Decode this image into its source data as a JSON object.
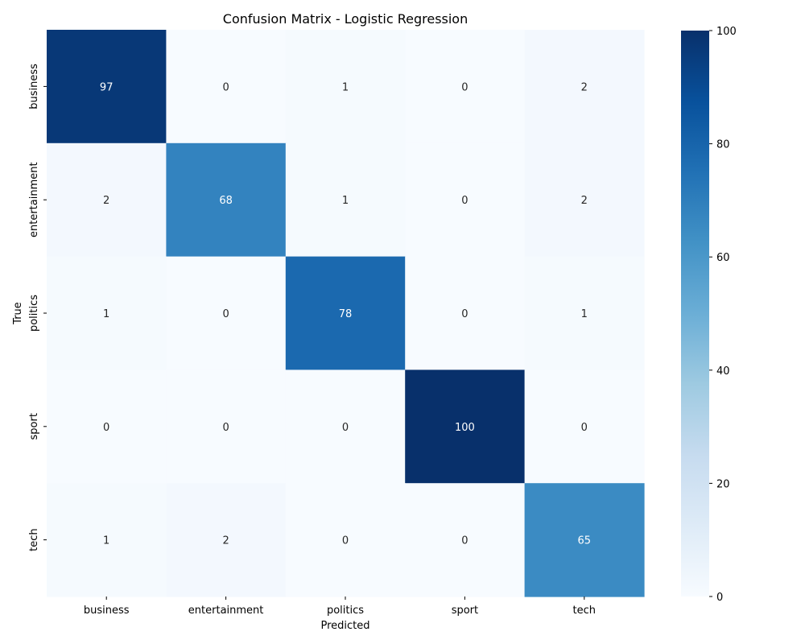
{
  "chart_data": {
    "type": "heatmap",
    "title": "Confusion Matrix - Logistic Regression",
    "xlabel": "Predicted",
    "ylabel": "True",
    "x_categories": [
      "business",
      "entertainment",
      "politics",
      "sport",
      "tech"
    ],
    "y_categories": [
      "business",
      "entertainment",
      "politics",
      "sport",
      "tech"
    ],
    "values": [
      [
        97,
        0,
        1,
        0,
        2
      ],
      [
        2,
        68,
        1,
        0,
        2
      ],
      [
        1,
        0,
        78,
        0,
        1
      ],
      [
        0,
        0,
        0,
        100,
        0
      ],
      [
        1,
        2,
        0,
        0,
        65
      ]
    ],
    "colormap": "Blues",
    "colorbar": {
      "range": [
        0,
        100
      ],
      "ticks": [
        0,
        20,
        40,
        60,
        80,
        100
      ]
    },
    "colors": {
      "min": "#f7fbff",
      "max": "#08306b",
      "annotation_light": "#ffffff",
      "annotation_dark": "#262626"
    }
  }
}
